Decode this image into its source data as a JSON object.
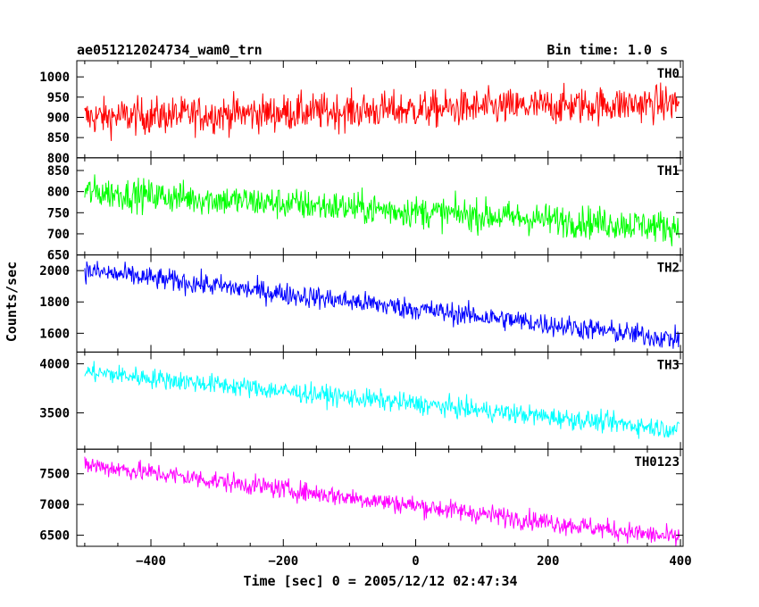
{
  "header": {
    "left_title": "ae051212024734_wam0_trn",
    "right_title": "Bin time: 1.0 s"
  },
  "chart_data": {
    "type": "line",
    "xlabel": "Time [sec] 0 = 2005/12/12 02:47:34",
    "ylabel": "Counts/sec",
    "xlim": [
      -512,
      404
    ],
    "x_ticks": [
      -400,
      -200,
      0,
      200,
      400
    ],
    "x_tick_labels": [
      "−400",
      "−200",
      "0",
      "200",
      "400"
    ],
    "x_range": [
      -500,
      398
    ],
    "grid": false,
    "panels": [
      {
        "name": "TH0",
        "color": "#ff0000",
        "ylim": [
          800,
          1040
        ],
        "yticks": [
          800,
          850,
          900,
          950,
          1000
        ],
        "start": 900,
        "end": 935,
        "noise": 90
      },
      {
        "name": "TH1",
        "color": "#00ff00",
        "ylim": [
          650,
          880
        ],
        "yticks": [
          650,
          700,
          750,
          800,
          850
        ],
        "start": 800,
        "end": 715,
        "noise": 75
      },
      {
        "name": "TH2",
        "color": "#0000ff",
        "ylim": [
          1480,
          2100
        ],
        "yticks": [
          1600,
          1800,
          2000
        ],
        "start": 2000,
        "end": 1560,
        "noise": 140
      },
      {
        "name": "TH3",
        "color": "#00ffff",
        "ylim": [
          3130,
          4120
        ],
        "yticks": [
          3500,
          4000
        ],
        "start": 3920,
        "end": 3330,
        "noise": 200
      },
      {
        "name": "TH0123",
        "color": "#ff00ff",
        "ylim": [
          6320,
          7900
        ],
        "yticks": [
          6500,
          7000,
          7500
        ],
        "start": 7650,
        "end": 6450,
        "noise": 320
      }
    ]
  }
}
